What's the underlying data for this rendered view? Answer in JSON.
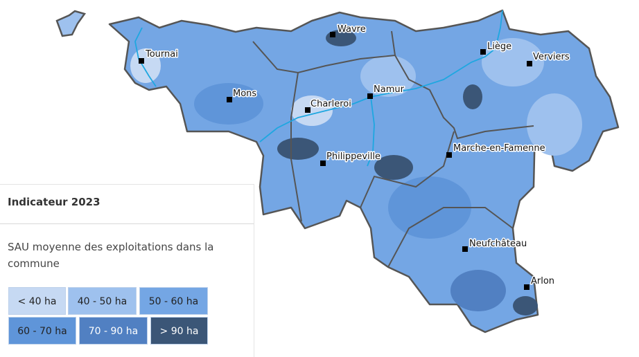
{
  "legend": {
    "title": "Indicateur 2023",
    "description": "SAU moyenne des exploitations dans la commune",
    "classes": [
      {
        "label": "< 40 ha",
        "color": "#c6d9f3",
        "text_color": "#222222"
      },
      {
        "label": "40 - 50 ha",
        "color": "#9ec1ee",
        "text_color": "#222222"
      },
      {
        "label": "50 - 60 ha",
        "color": "#74a6e4",
        "text_color": "#222222"
      },
      {
        "label": "60 - 70 ha",
        "color": "#5f95d9",
        "text_color": "#222222"
      },
      {
        "label": "70 - 90 ha",
        "color": "#5180c2",
        "text_color": "#ffffff"
      },
      {
        "label": "> 90 ha",
        "color": "#3b5677",
        "text_color": "#ffffff"
      }
    ]
  },
  "cities": [
    "Wavre",
    "Tournai",
    "Mons",
    "Charleroi",
    "Namur",
    "Liège",
    "Verviers",
    "Marche-en-Famenne",
    "Philippeville",
    "Neufchâteau",
    "Arlon"
  ]
}
